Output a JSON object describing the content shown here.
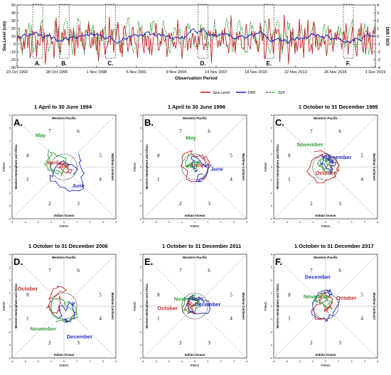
{
  "chart_data": [
    {
      "type": "line",
      "ylabel": "Sea Level (cm)",
      "y2label": "DMI / SOI",
      "xlabel": "Observation Period",
      "ylim": [
        -30,
        50
      ],
      "y2lim": [
        -4,
        4
      ],
      "yticks": [
        -30,
        -20,
        -10,
        0,
        10,
        20,
        30,
        40,
        50
      ],
      "y2ticks": [
        -4,
        -3,
        -2,
        -1,
        0,
        1,
        2,
        3,
        4
      ],
      "xlim": [
        "1992-10-23",
        "2019-12-01"
      ],
      "xticks": [
        {
          "date": "1992-10-23",
          "label": "23 Oct 1992"
        },
        {
          "date": "1995-10-28",
          "label": "28 Oct 1995"
        },
        {
          "date": "1998-11-01",
          "label": "1 Nov 1998"
        },
        {
          "date": "2001-11-05",
          "label": "5 Nov 2001"
        },
        {
          "date": "2004-11-09",
          "label": "9 Nov 2004"
        },
        {
          "date": "2007-11-14",
          "label": "14 Nov 2007"
        },
        {
          "date": "2010-11-18",
          "label": "18 Nov 2010"
        },
        {
          "date": "2013-11-22",
          "label": "22 Nov 2013"
        },
        {
          "date": "2016-11-26",
          "label": "26 Nov 2016"
        },
        {
          "date": "2019-12-01",
          "label": "1 Dec 2019"
        }
      ],
      "highlights": [
        {
          "label": "A.",
          "start": "1994-04-01",
          "end": "1994-06-30"
        },
        {
          "label": "B.",
          "start": "1996-04-01",
          "end": "1996-06-30"
        },
        {
          "label": "C.",
          "start": "1999-10-01",
          "end": "1999-12-31"
        },
        {
          "label": "D.",
          "start": "2006-10-01",
          "end": "2006-12-31"
        },
        {
          "label": "E.",
          "start": "2011-10-01",
          "end": "2011-12-31"
        },
        {
          "label": "F.",
          "start": "2017-10-01",
          "end": "2017-12-31"
        }
      ],
      "series": [
        {
          "name": "Sea Level",
          "color": "#c62828",
          "axis": "left"
        },
        {
          "name": "DMI",
          "color": "#1f2fbf",
          "axis": "right"
        },
        {
          "name": "SOI",
          "color": "#2e9e3a",
          "axis": "right"
        }
      ]
    },
    {
      "type": "phase-diagram",
      "label": "A.",
      "title": "1 April to 30 June 1994",
      "xlabel": "RMM1",
      "ylabel": "RMM2",
      "xlim": [
        -4,
        4
      ],
      "ylim": [
        -4,
        4
      ],
      "months": [
        {
          "name": "April",
          "color": "#c62828"
        },
        {
          "name": "May",
          "color": "#2e9e3a"
        },
        {
          "name": "June",
          "color": "#1f2fbf"
        }
      ]
    },
    {
      "type": "phase-diagram",
      "label": "B.",
      "title": "1 April to 30 June 1996",
      "xlabel": "RMM1",
      "ylabel": "RMM2",
      "xlim": [
        -4,
        4
      ],
      "ylim": [
        -4,
        4
      ],
      "months": [
        {
          "name": "April",
          "color": "#c62828"
        },
        {
          "name": "May",
          "color": "#2e9e3a"
        },
        {
          "name": "June",
          "color": "#1f2fbf"
        }
      ]
    },
    {
      "type": "phase-diagram",
      "label": "C.",
      "title": "1 October to 31 December 1999",
      "xlabel": "RMM1",
      "ylabel": "RMM2",
      "xlim": [
        -4,
        4
      ],
      "ylim": [
        -4,
        4
      ],
      "months": [
        {
          "name": "October",
          "color": "#c62828"
        },
        {
          "name": "November",
          "color": "#2e9e3a"
        },
        {
          "name": "December",
          "color": "#1f2fbf"
        }
      ]
    },
    {
      "type": "phase-diagram",
      "label": "D.",
      "title": "1 October to 31 December 2006",
      "xlabel": "RMM1",
      "ylabel": "RMM2",
      "xlim": [
        -4,
        4
      ],
      "ylim": [
        -4,
        4
      ],
      "months": [
        {
          "name": "October",
          "color": "#c62828"
        },
        {
          "name": "November",
          "color": "#2e9e3a"
        },
        {
          "name": "December",
          "color": "#1f2fbf"
        }
      ]
    },
    {
      "type": "phase-diagram",
      "label": "E.",
      "title": "1 October to 31 December 2011",
      "xlabel": "RMM1",
      "ylabel": "RMM2",
      "xlim": [
        -4,
        4
      ],
      "ylim": [
        -4,
        4
      ],
      "months": [
        {
          "name": "October",
          "color": "#c62828"
        },
        {
          "name": "November",
          "color": "#2e9e3a"
        },
        {
          "name": "December",
          "color": "#1f2fbf"
        }
      ]
    },
    {
      "type": "phase-diagram",
      "label": "F.",
      "title": "1 October to 31 December 2017",
      "xlabel": "RMM1",
      "ylabel": "RMM2",
      "xlim": [
        -4,
        4
      ],
      "ylim": [
        -4,
        4
      ],
      "months": [
        {
          "name": "December",
          "color": "#1f2fbf"
        },
        {
          "name": "November",
          "color": "#2e9e3a"
        },
        {
          "name": "October",
          "color": "#c62828"
        }
      ]
    }
  ],
  "phase_labels": {
    "top": "Western Pacific",
    "bottom": "Indian Ocean",
    "left": "Western Hemisphere and Africa",
    "right": "Maritime Continent",
    "numbers": [
      "1",
      "2",
      "3",
      "4",
      "5",
      "6",
      "7",
      "8"
    ]
  }
}
